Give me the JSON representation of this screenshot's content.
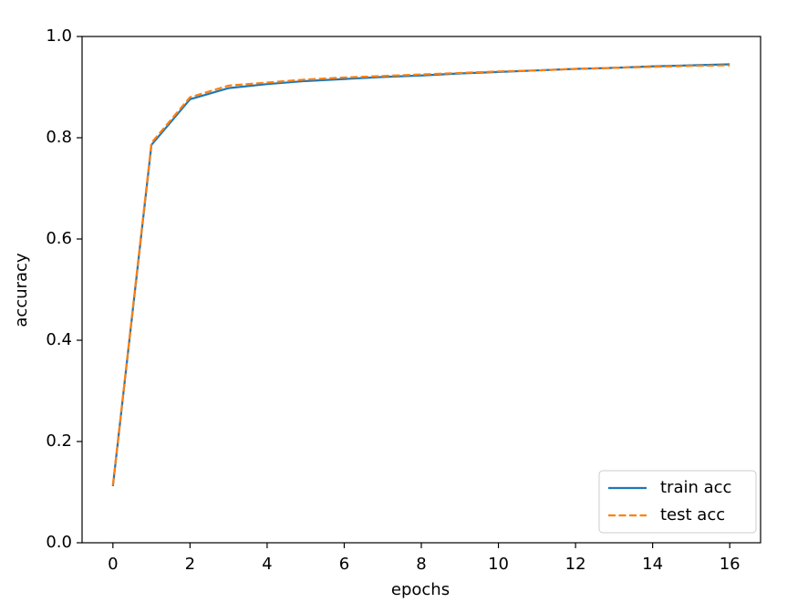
{
  "chart_data": {
    "type": "line",
    "x_label": "epochs",
    "y_label": "accuracy",
    "x": [
      0,
      1,
      2,
      3,
      4,
      5,
      6,
      7,
      8,
      9,
      10,
      11,
      12,
      13,
      14,
      15,
      16
    ],
    "series": [
      {
        "name": "train acc",
        "color": "#1f77b4",
        "linestyle": "solid",
        "values": [
          0.112,
          0.786,
          0.876,
          0.898,
          0.906,
          0.912,
          0.916,
          0.92,
          0.923,
          0.927,
          0.93,
          0.933,
          0.936,
          0.938,
          0.941,
          0.943,
          0.945
        ]
      },
      {
        "name": "test acc",
        "color": "#ff7f0e",
        "linestyle": "dashed",
        "values": [
          0.114,
          0.79,
          0.88,
          0.903,
          0.909,
          0.915,
          0.919,
          0.922,
          0.925,
          0.928,
          0.931,
          0.933,
          0.936,
          0.938,
          0.94,
          0.942,
          0.943
        ]
      }
    ],
    "xlim": [
      -0.8,
      16.8
    ],
    "ylim": [
      0,
      1
    ],
    "xticks": [
      0,
      2,
      4,
      6,
      8,
      10,
      12,
      14,
      16
    ],
    "yticks": [
      {
        "value": 0,
        "label": "0.0"
      },
      0.2,
      0.4,
      0.6,
      0.8,
      {
        "value": 1,
        "label": "1.0"
      }
    ],
    "grid": false,
    "legend": "lower right"
  }
}
